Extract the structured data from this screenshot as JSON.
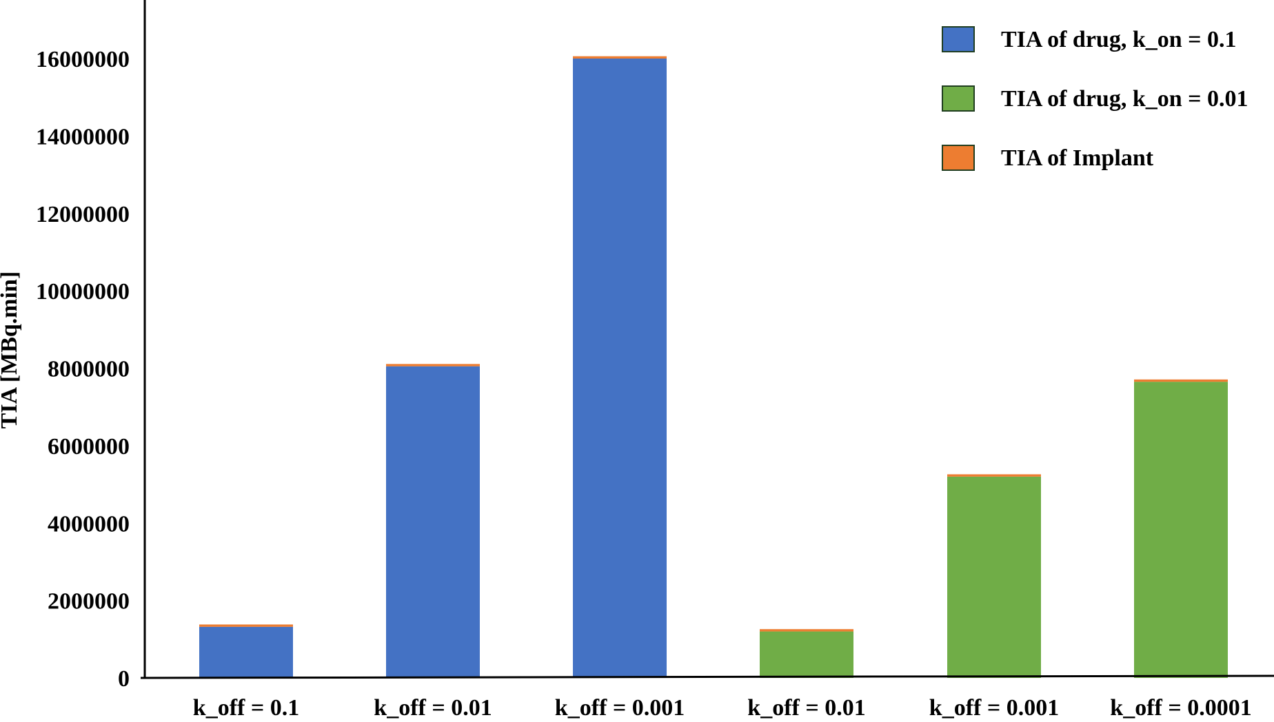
{
  "chart_data": {
    "type": "bar",
    "stacked": true,
    "title": "",
    "xlabel": "",
    "ylabel": "TIA [MBq.min]",
    "ylim": [
      0,
      17000000
    ],
    "yticks": [
      0,
      2000000,
      4000000,
      6000000,
      8000000,
      10000000,
      12000000,
      14000000,
      16000000
    ],
    "ytick_labels": [
      "0",
      "2000000",
      "4000000",
      "6000000",
      "8000000",
      "10000000",
      "12000000",
      "14000000",
      "16000000"
    ],
    "categories": [
      "k_off = 0.1",
      "k_off = 0.01",
      "k_off = 0.001",
      "k_off = 0.01",
      "k_off = 0.001",
      "k_off = 0.0001"
    ],
    "series": [
      {
        "name": "TIA of drug,  k_on = 0.1",
        "color": "#4472C4",
        "values": [
          1320000,
          8050000,
          16000000,
          null,
          null,
          null
        ]
      },
      {
        "name": "TIA of drug, k_on = 0.01",
        "color": "#70AD47",
        "values": [
          null,
          null,
          null,
          1200000,
          5200000,
          7650000
        ]
      },
      {
        "name": "TIA of Implant",
        "color": "#ED7D31",
        "values": [
          60000,
          60000,
          60000,
          60000,
          60000,
          60000
        ]
      }
    ],
    "grid": false,
    "legend_position": "top-right"
  }
}
